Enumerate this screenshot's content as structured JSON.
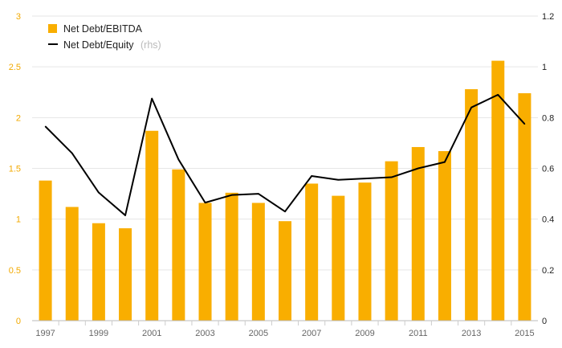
{
  "chart_data": {
    "type": "bar+line",
    "categories": [
      "1997",
      "1998",
      "1999",
      "2000",
      "2001",
      "2002",
      "2003",
      "2004",
      "2005",
      "2006",
      "2007",
      "2008",
      "2009",
      "2010",
      "2011",
      "2012",
      "2013",
      "2014",
      "2015"
    ],
    "x_tick_labels": [
      "1997",
      "1999",
      "2001",
      "2003",
      "2005",
      "2007",
      "2009",
      "2011",
      "2013",
      "2015"
    ],
    "series": [
      {
        "name": "Net Debt/EBITDA",
        "type": "bar",
        "axis": "left",
        "color": "#f9ae00",
        "values": [
          1.38,
          1.12,
          0.96,
          0.91,
          1.87,
          1.49,
          1.16,
          1.26,
          1.16,
          0.98,
          1.35,
          1.23,
          1.36,
          1.57,
          1.71,
          1.67,
          2.28,
          2.56,
          2.24
        ]
      },
      {
        "name": "Net Debt/Equity",
        "name_suffix": "(rhs)",
        "type": "line",
        "axis": "right",
        "color": "#000000",
        "values": [
          0.765,
          0.66,
          0.505,
          0.415,
          0.875,
          0.635,
          0.465,
          0.495,
          0.5,
          0.43,
          0.57,
          0.555,
          0.56,
          0.565,
          0.6,
          0.625,
          0.84,
          0.89,
          0.775
        ]
      }
    ],
    "y_left": {
      "min": 0,
      "max": 3,
      "ticks": [
        "0",
        "0.5",
        "1",
        "1.5",
        "2",
        "2.5",
        "3"
      ],
      "color": "#f2a900"
    },
    "y_right": {
      "min": 0,
      "max": 1.2,
      "ticks": [
        "0",
        "0.2",
        "0.4",
        "0.6",
        "0.8",
        "1",
        "1.2"
      ],
      "color": "#222222"
    },
    "grid": "horizontal",
    "legend_position": "top-left"
  }
}
